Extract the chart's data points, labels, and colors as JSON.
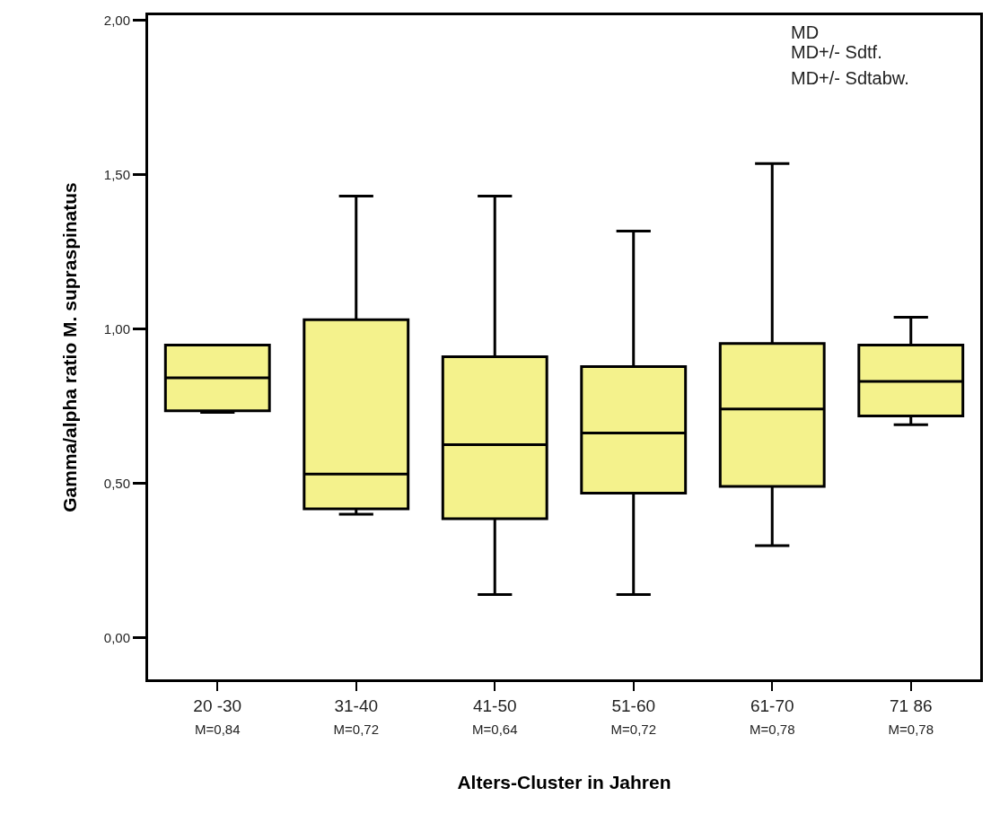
{
  "chart_data": {
    "type": "box",
    "xlabel": "Alters-Cluster in Jahren",
    "ylabel": "Gamma/alpha ratio M. supraspinatus",
    "categories": [
      "20 -30\nM=0,84",
      "31-40\nM=0,72",
      "41-50\nM=0,64",
      "51-60\nM=0,72",
      "61-70\nM=0,78",
      "71 86\nM=0,78"
    ],
    "boxes": [
      {
        "low": 0.73,
        "q1": 0.735,
        "median": 0.842,
        "q3": 0.948,
        "high": 0.948
      },
      {
        "low": 0.4,
        "q1": 0.417,
        "median": 0.53,
        "q3": 1.03,
        "high": 1.43
      },
      {
        "low": 0.14,
        "q1": 0.385,
        "median": 0.625,
        "q3": 0.91,
        "high": 1.43
      },
      {
        "low": 0.14,
        "q1": 0.468,
        "median": 0.663,
        "q3": 0.878,
        "high": 1.317
      },
      {
        "low": 0.298,
        "q1": 0.49,
        "median": 0.741,
        "q3": 0.953,
        "high": 1.536
      },
      {
        "low": 0.69,
        "q1": 0.718,
        "median": 0.83,
        "q3": 0.948,
        "high": 1.038
      }
    ],
    "color": "#f4f28c",
    "ylim": [
      -0.135,
      2.016
    ],
    "yticks": [
      {
        "value": 0,
        "label": "0,00"
      },
      {
        "value": 0.5,
        "label": "0,50"
      },
      {
        "value": 1,
        "label": "1,00"
      },
      {
        "value": 1.5,
        "label": "1,50"
      },
      {
        "value": 2,
        "label": "2,00"
      }
    ],
    "annotations": [
      "MD",
      "MD+/- Sdtf.",
      "MD+/- Sdtabw."
    ]
  }
}
